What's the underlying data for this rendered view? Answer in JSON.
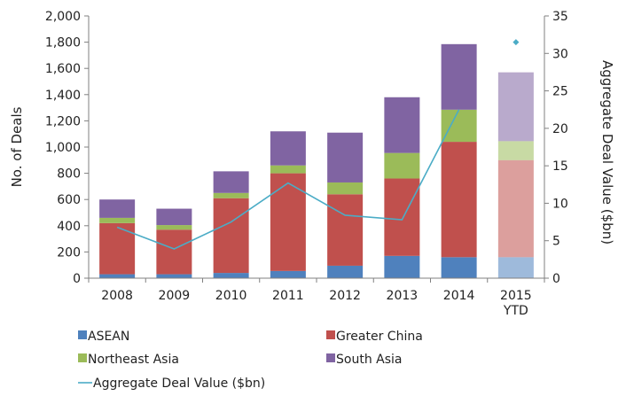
{
  "chart_data": {
    "type": "bar",
    "categories": [
      "2008",
      "2009",
      "2010",
      "2011",
      "2012",
      "2013",
      "2014",
      "2015\nYTD"
    ],
    "series": [
      {
        "name": "ASEAN",
        "color": "#4f81bd",
        "values": [
          30,
          30,
          40,
          55,
          95,
          170,
          160,
          160
        ]
      },
      {
        "name": "Greater China",
        "color": "#c0504d",
        "values": [
          390,
          340,
          570,
          745,
          545,
          590,
          880,
          740
        ]
      },
      {
        "name": "Northeast Asia",
        "color": "#9bbb59",
        "values": [
          40,
          35,
          40,
          60,
          90,
          195,
          245,
          145
        ]
      },
      {
        "name": "South Asia",
        "color": "#8064a2",
        "values": [
          140,
          125,
          165,
          260,
          380,
          425,
          500,
          525
        ]
      }
    ],
    "line_series": {
      "name": "Aggregate Deal Value ($bn)",
      "color": "#4bacc6",
      "values": [
        6.8,
        3.9,
        7.5,
        12.7,
        8.4,
        7.8,
        22.5,
        null
      ]
    },
    "point_2015": {
      "value": 31.5,
      "color": "#4bacc6"
    },
    "faded_categories": [
      "2015\nYTD"
    ],
    "ylabel": "No. of Deals",
    "y2label": "Aggregate Deal Value ($bn)",
    "ylim": [
      0,
      2000
    ],
    "y2lim": [
      0,
      35
    ],
    "yticks": [
      "0",
      "200",
      "400",
      "600",
      "800",
      "1,000",
      "1,200",
      "1,400",
      "1,600",
      "1,800",
      "2,000"
    ],
    "y2ticks": [
      "0",
      "5",
      "10",
      "15",
      "20",
      "25",
      "30",
      "35"
    ],
    "grid": false,
    "legend_position": "bottom"
  }
}
